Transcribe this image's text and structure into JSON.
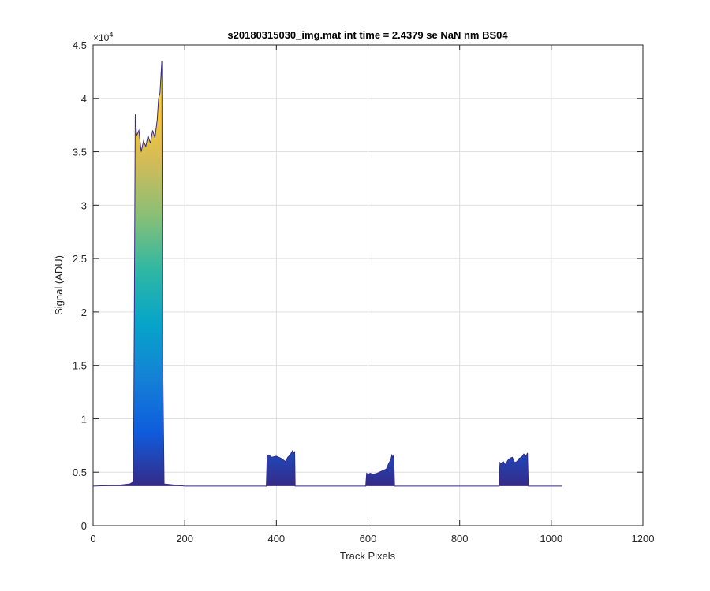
{
  "chart_data": {
    "type": "area",
    "title": "s20180315030_img.mat int time = 2.4379 se  NaN nm BS04",
    "xlabel": "Track Pixels",
    "ylabel": "Signal (ADU)",
    "xlim": [
      0,
      1200
    ],
    "ylim": [
      0,
      45000
    ],
    "y_exponent_label": "×10",
    "y_exponent_power": "4",
    "x_ticks": [
      0,
      200,
      400,
      600,
      800,
      1000,
      1200
    ],
    "x_tick_labels": [
      "0",
      "200",
      "400",
      "600",
      "800",
      "1000",
      "1200"
    ],
    "y_ticks": [
      0,
      5000,
      10000,
      15000,
      20000,
      25000,
      30000,
      35000,
      40000,
      45000
    ],
    "y_tick_labels": [
      "0",
      "0.5",
      "1",
      "1.5",
      "2",
      "2.5",
      "3",
      "3.5",
      "4",
      "4.5"
    ],
    "grid": true,
    "baseline": 3700,
    "colormap": [
      "#352a87",
      "#0f5cdd",
      "#1481d6",
      "#06a4ca",
      "#2eb7a4",
      "#87bf77",
      "#d1bb59",
      "#fec832",
      "#f9fb0e"
    ],
    "x": [
      0,
      60,
      80,
      88,
      90,
      92,
      95,
      100,
      105,
      110,
      115,
      120,
      125,
      130,
      135,
      140,
      143,
      146,
      148,
      150,
      152,
      155,
      200,
      300,
      378,
      380,
      383,
      390,
      400,
      410,
      420,
      425,
      430,
      435,
      438,
      440,
      441,
      450,
      550,
      595,
      597,
      600,
      605,
      610,
      620,
      630,
      640,
      645,
      650,
      652,
      654,
      656,
      658,
      700,
      800,
      886,
      888,
      890,
      895,
      900,
      905,
      910,
      915,
      920,
      925,
      930,
      935,
      940,
      945,
      948,
      950,
      1000,
      1024
    ],
    "y": [
      3700,
      3800,
      3900,
      4100,
      20000,
      38500,
      36500,
      37000,
      35000,
      36000,
      35500,
      36500,
      35800,
      37000,
      36300,
      38000,
      40000,
      40500,
      42000,
      43500,
      15000,
      3900,
      3700,
      3700,
      3700,
      6500,
      6600,
      6400,
      6500,
      6300,
      6000,
      6400,
      6600,
      7000,
      6800,
      6900,
      3700,
      3700,
      3700,
      3700,
      4900,
      4800,
      4900,
      4800,
      4900,
      5100,
      5300,
      5800,
      6200,
      6600,
      6400,
      6600,
      3700,
      3700,
      3700,
      3700,
      5900,
      5800,
      6000,
      5700,
      6100,
      6300,
      6400,
      5900,
      6000,
      6300,
      6400,
      6700,
      6500,
      6800,
      3700,
      3700,
      3700
    ]
  }
}
